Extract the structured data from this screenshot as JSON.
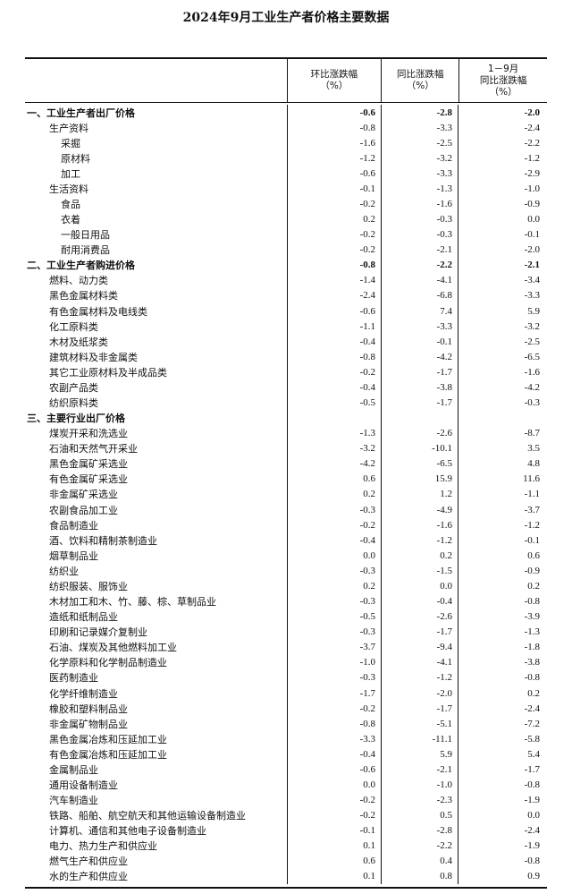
{
  "title": "2024年9月工业生产者价格主要数据",
  "headers": {
    "col1": [
      "环比涨跌幅",
      "（%）"
    ],
    "col2": [
      "同比涨跌幅",
      "（%）"
    ],
    "col3": [
      "1－9月",
      "同比涨跌幅",
      "（%）"
    ]
  },
  "rows": [
    {
      "label": "一、工业生产者出厂价格",
      "level": 0,
      "bold": true,
      "values": [
        "-0.6",
        "-2.8",
        "-2.0"
      ]
    },
    {
      "label": "生产资料",
      "level": 1,
      "values": [
        "-0.8",
        "-3.3",
        "-2.4"
      ]
    },
    {
      "label": "采掘",
      "level": 2,
      "values": [
        "-1.6",
        "-2.5",
        "-2.2"
      ]
    },
    {
      "label": "原材料",
      "level": 2,
      "values": [
        "-1.2",
        "-3.2",
        "-1.2"
      ]
    },
    {
      "label": "加工",
      "level": 2,
      "values": [
        "-0.6",
        "-3.3",
        "-2.9"
      ]
    },
    {
      "label": "生活资料",
      "level": 1,
      "values": [
        "-0.1",
        "-1.3",
        "-1.0"
      ]
    },
    {
      "label": "食品",
      "level": 2,
      "values": [
        "-0.2",
        "-1.6",
        "-0.9"
      ]
    },
    {
      "label": "衣着",
      "level": 2,
      "values": [
        "0.2",
        "-0.3",
        "0.0"
      ]
    },
    {
      "label": "一般日用品",
      "level": 2,
      "values": [
        "-0.2",
        "-0.3",
        "-0.1"
      ]
    },
    {
      "label": "耐用消费品",
      "level": 2,
      "values": [
        "-0.2",
        "-2.1",
        "-2.0"
      ]
    },
    {
      "label": "二、工业生产者购进价格",
      "level": 0,
      "bold": true,
      "values": [
        "-0.8",
        "-2.2",
        "-2.1"
      ]
    },
    {
      "label": "燃料、动力类",
      "level": 1,
      "values": [
        "-1.4",
        "-4.1",
        "-3.4"
      ]
    },
    {
      "label": "黑色金属材料类",
      "level": 1,
      "values": [
        "-2.4",
        "-6.8",
        "-3.3"
      ]
    },
    {
      "label": "有色金属材料及电线类",
      "level": 1,
      "values": [
        "-0.6",
        "7.4",
        "5.9"
      ]
    },
    {
      "label": "化工原料类",
      "level": 1,
      "values": [
        "-1.1",
        "-3.3",
        "-3.2"
      ]
    },
    {
      "label": "木材及纸浆类",
      "level": 1,
      "values": [
        "-0.4",
        "-0.1",
        "-2.5"
      ]
    },
    {
      "label": "建筑材料及非金属类",
      "level": 1,
      "values": [
        "-0.8",
        "-4.2",
        "-6.5"
      ]
    },
    {
      "label": "其它工业原材料及半成品类",
      "level": 1,
      "values": [
        "-0.2",
        "-1.7",
        "-1.6"
      ]
    },
    {
      "label": "农副产品类",
      "level": 1,
      "values": [
        "-0.4",
        "-3.8",
        "-4.2"
      ]
    },
    {
      "label": "纺织原料类",
      "level": 1,
      "values": [
        "-0.5",
        "-1.7",
        "-0.3"
      ]
    },
    {
      "label": "三、主要行业出厂价格",
      "level": 0,
      "bold": true,
      "values": [
        "",
        "",
        ""
      ]
    },
    {
      "label": "煤炭开采和洗选业",
      "level": 1,
      "values": [
        "-1.3",
        "-2.6",
        "-8.7"
      ]
    },
    {
      "label": "石油和天然气开采业",
      "level": 1,
      "values": [
        "-3.2",
        "-10.1",
        "3.5"
      ]
    },
    {
      "label": "黑色金属矿采选业",
      "level": 1,
      "values": [
        "-4.2",
        "-6.5",
        "4.8"
      ]
    },
    {
      "label": "有色金属矿采选业",
      "level": 1,
      "values": [
        "0.6",
        "15.9",
        "11.6"
      ]
    },
    {
      "label": "非金属矿采选业",
      "level": 1,
      "values": [
        "0.2",
        "1.2",
        "-1.1"
      ]
    },
    {
      "label": "农副食品加工业",
      "level": 1,
      "values": [
        "-0.3",
        "-4.9",
        "-3.7"
      ]
    },
    {
      "label": "食品制造业",
      "level": 1,
      "values": [
        "-0.2",
        "-1.6",
        "-1.2"
      ]
    },
    {
      "label": "酒、饮料和精制茶制造业",
      "level": 1,
      "values": [
        "-0.4",
        "-1.2",
        "-0.1"
      ]
    },
    {
      "label": "烟草制品业",
      "level": 1,
      "values": [
        "0.0",
        "0.2",
        "0.6"
      ]
    },
    {
      "label": "纺织业",
      "level": 1,
      "values": [
        "-0.3",
        "-1.5",
        "-0.9"
      ]
    },
    {
      "label": "纺织服装、服饰业",
      "level": 1,
      "values": [
        "0.2",
        "0.0",
        "0.2"
      ]
    },
    {
      "label": "木材加工和木、竹、藤、棕、草制品业",
      "level": 1,
      "values": [
        "-0.3",
        "-0.4",
        "-0.8"
      ]
    },
    {
      "label": "造纸和纸制品业",
      "level": 1,
      "values": [
        "-0.5",
        "-2.6",
        "-3.9"
      ]
    },
    {
      "label": "印刷和记录媒介复制业",
      "level": 1,
      "values": [
        "-0.3",
        "-1.7",
        "-1.3"
      ]
    },
    {
      "label": "石油、煤炭及其他燃料加工业",
      "level": 1,
      "values": [
        "-3.7",
        "-9.4",
        "-1.8"
      ]
    },
    {
      "label": "化学原料和化学制品制造业",
      "level": 1,
      "values": [
        "-1.0",
        "-4.1",
        "-3.8"
      ]
    },
    {
      "label": "医药制造业",
      "level": 1,
      "values": [
        "-0.3",
        "-1.2",
        "-0.8"
      ]
    },
    {
      "label": "化学纤维制造业",
      "level": 1,
      "values": [
        "-1.7",
        "-2.0",
        "0.2"
      ]
    },
    {
      "label": "橡胶和塑料制品业",
      "level": 1,
      "values": [
        "-0.2",
        "-1.7",
        "-2.4"
      ]
    },
    {
      "label": "非金属矿物制品业",
      "level": 1,
      "values": [
        "-0.8",
        "-5.1",
        "-7.2"
      ]
    },
    {
      "label": "黑色金属冶炼和压延加工业",
      "level": 1,
      "values": [
        "-3.3",
        "-11.1",
        "-5.8"
      ]
    },
    {
      "label": "有色金属冶炼和压延加工业",
      "level": 1,
      "values": [
        "-0.4",
        "5.9",
        "5.4"
      ]
    },
    {
      "label": "金属制品业",
      "level": 1,
      "values": [
        "-0.6",
        "-2.1",
        "-1.7"
      ]
    },
    {
      "label": "通用设备制造业",
      "level": 1,
      "values": [
        "0.0",
        "-1.0",
        "-0.8"
      ]
    },
    {
      "label": "汽车制造业",
      "level": 1,
      "values": [
        "-0.2",
        "-2.3",
        "-1.9"
      ]
    },
    {
      "label": "铁路、船舶、航空航天和其他运输设备制造业",
      "level": 1,
      "values": [
        "-0.2",
        "0.5",
        "0.0"
      ]
    },
    {
      "label": "计算机、通信和其他电子设备制造业",
      "level": 1,
      "values": [
        "-0.1",
        "-2.8",
        "-2.4"
      ]
    },
    {
      "label": "电力、热力生产和供应业",
      "level": 1,
      "values": [
        "0.1",
        "-2.2",
        "-1.9"
      ]
    },
    {
      "label": "燃气生产和供应业",
      "level": 1,
      "values": [
        "0.6",
        "0.4",
        "-0.8"
      ]
    },
    {
      "label": "水的生产和供应业",
      "level": 1,
      "values": [
        "0.1",
        "0.8",
        "0.9"
      ]
    }
  ]
}
